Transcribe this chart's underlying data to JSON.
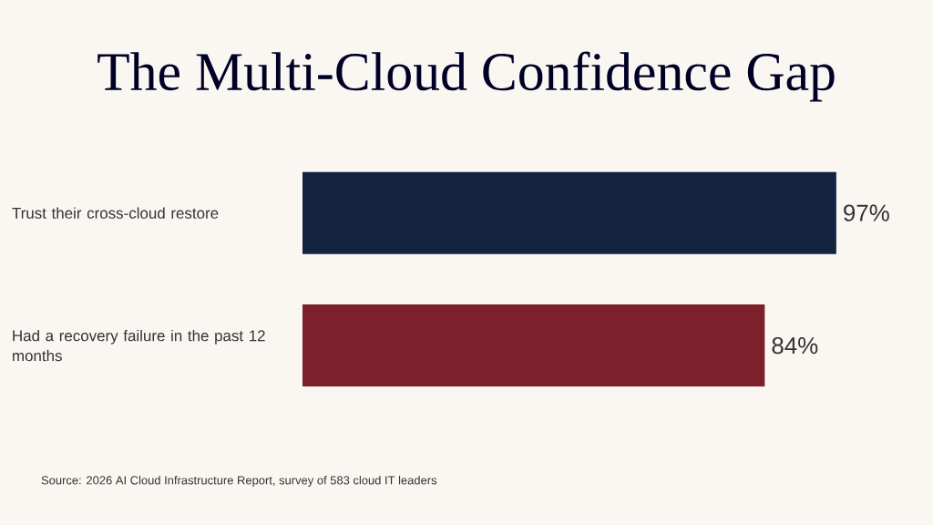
{
  "chart_data": {
    "type": "bar",
    "orientation": "horizontal",
    "title": "The Multi-Cloud Confidence Gap",
    "categories": [
      "Trust their cross-cloud restore",
      "Had a recovery failure in the past 12 months"
    ],
    "values": [
      97,
      84
    ],
    "colors": [
      "#13233f",
      "#7c202b"
    ],
    "value_labels": [
      "97%",
      "84%"
    ],
    "annotations": [
      "Source: 2026 AI Cloud Infrastructure Report, survey of 583 cloud IT leaders"
    ]
  }
}
